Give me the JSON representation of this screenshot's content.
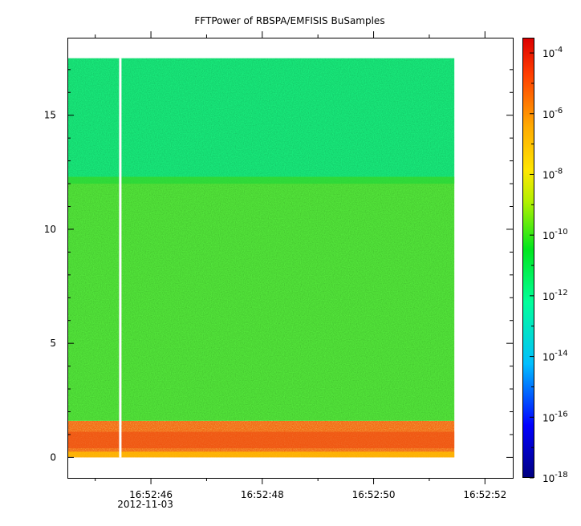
{
  "chart_data": {
    "type": "heatmap",
    "title": "FFTPower of RBSPA/EMFISIS  BuSamples",
    "xlabel": "",
    "ylabel": "",
    "x_ticks": [
      {
        "label": "16:52:46",
        "sublabel": "2012-11-03",
        "t": 46
      },
      {
        "label": "16:52:48",
        "t": 48
      },
      {
        "label": "16:52:50",
        "t": 50
      },
      {
        "label": "16:52:52",
        "t": 52
      }
    ],
    "x_minor_ticks": [
      45,
      47,
      49,
      51
    ],
    "xlim": [
      44.5,
      52.5
    ],
    "y_ticks": [
      0,
      5,
      10,
      15
    ],
    "ylim": [
      -0.9,
      18.4
    ],
    "data_extent": {
      "t_start": 44.5,
      "t_end": 51.45,
      "y_min": 0,
      "y_max": 17.5
    },
    "gap": {
      "t": 45.45
    },
    "bands": [
      {
        "y_range": [
          0,
          1.6
        ],
        "level": 1e-07,
        "description_color": "orange-red"
      },
      {
        "y_range": [
          1.6,
          12.3
        ],
        "level": 1e-10,
        "description_color": "green"
      },
      {
        "y_range": [
          12.3,
          17.5
        ],
        "level": 1e-12,
        "description_color": "teal-green"
      }
    ],
    "colorbar": {
      "scale": "log",
      "range": [
        1e-18,
        0.0003
      ],
      "tick_labels": [
        {
          "base": "10",
          "exp": "-4"
        },
        {
          "base": "10",
          "exp": "-6"
        },
        {
          "base": "10",
          "exp": "-8"
        },
        {
          "base": "10",
          "exp": "-10"
        },
        {
          "base": "10",
          "exp": "-12"
        },
        {
          "base": "10",
          "exp": "-14"
        },
        {
          "base": "10",
          "exp": "-16"
        },
        {
          "base": "10",
          "exp": "-18"
        }
      ],
      "colors": [
        "#00007f",
        "#0000ff",
        "#00bfff",
        "#00ffaa",
        "#00e61e",
        "#c8f000",
        "#ffdc00",
        "#ff8c00",
        "#ff2800",
        "#e60000"
      ]
    }
  }
}
